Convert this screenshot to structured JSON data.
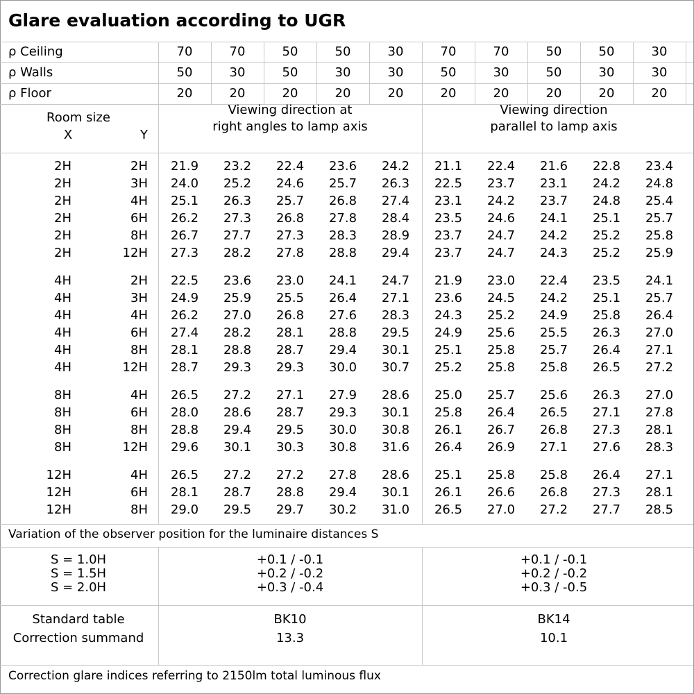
{
  "title": "Glare evaluation according to UGR",
  "reflectance": [
    {
      "label": "ρ Ceiling",
      "values": [
        "70",
        "70",
        "50",
        "50",
        "30",
        "70",
        "70",
        "50",
        "50",
        "30"
      ]
    },
    {
      "label": "ρ Walls",
      "values": [
        "50",
        "30",
        "50",
        "30",
        "30",
        "50",
        "30",
        "50",
        "30",
        "30"
      ]
    },
    {
      "label": "ρ Floor",
      "values": [
        "20",
        "20",
        "20",
        "20",
        "20",
        "20",
        "20",
        "20",
        "20",
        "20"
      ]
    }
  ],
  "room_size": {
    "label": "Room size",
    "x": "X",
    "y": "Y"
  },
  "directions": [
    [
      "Viewing direction at",
      "right angles to lamp axis"
    ],
    [
      "Viewing direction",
      "parallel to lamp axis"
    ]
  ],
  "groups": [
    [
      {
        "x": "2H",
        "y": "2H",
        "values": [
          "21.9",
          "23.2",
          "22.4",
          "23.6",
          "24.2",
          "21.1",
          "22.4",
          "21.6",
          "22.8",
          "23.4"
        ]
      },
      {
        "x": "2H",
        "y": "3H",
        "values": [
          "24.0",
          "25.2",
          "24.6",
          "25.7",
          "26.3",
          "22.5",
          "23.7",
          "23.1",
          "24.2",
          "24.8"
        ]
      },
      {
        "x": "2H",
        "y": "4H",
        "values": [
          "25.1",
          "26.3",
          "25.7",
          "26.8",
          "27.4",
          "23.1",
          "24.2",
          "23.7",
          "24.8",
          "25.4"
        ]
      },
      {
        "x": "2H",
        "y": "6H",
        "values": [
          "26.2",
          "27.3",
          "26.8",
          "27.8",
          "28.4",
          "23.5",
          "24.6",
          "24.1",
          "25.1",
          "25.7"
        ]
      },
      {
        "x": "2H",
        "y": "8H",
        "values": [
          "26.7",
          "27.7",
          "27.3",
          "28.3",
          "28.9",
          "23.7",
          "24.7",
          "24.2",
          "25.2",
          "25.8"
        ]
      },
      {
        "x": "2H",
        "y": "12H",
        "values": [
          "27.3",
          "28.2",
          "27.8",
          "28.8",
          "29.4",
          "23.7",
          "24.7",
          "24.3",
          "25.2",
          "25.9"
        ]
      }
    ],
    [
      {
        "x": "4H",
        "y": "2H",
        "values": [
          "22.5",
          "23.6",
          "23.0",
          "24.1",
          "24.7",
          "21.9",
          "23.0",
          "22.4",
          "23.5",
          "24.1"
        ]
      },
      {
        "x": "4H",
        "y": "3H",
        "values": [
          "24.9",
          "25.9",
          "25.5",
          "26.4",
          "27.1",
          "23.6",
          "24.5",
          "24.2",
          "25.1",
          "25.7"
        ]
      },
      {
        "x": "4H",
        "y": "4H",
        "values": [
          "26.2",
          "27.0",
          "26.8",
          "27.6",
          "28.3",
          "24.3",
          "25.2",
          "24.9",
          "25.8",
          "26.4"
        ]
      },
      {
        "x": "4H",
        "y": "6H",
        "values": [
          "27.4",
          "28.2",
          "28.1",
          "28.8",
          "29.5",
          "24.9",
          "25.6",
          "25.5",
          "26.3",
          "27.0"
        ]
      },
      {
        "x": "4H",
        "y": "8H",
        "values": [
          "28.1",
          "28.8",
          "28.7",
          "29.4",
          "30.1",
          "25.1",
          "25.8",
          "25.7",
          "26.4",
          "27.1"
        ]
      },
      {
        "x": "4H",
        "y": "12H",
        "values": [
          "28.7",
          "29.3",
          "29.3",
          "30.0",
          "30.7",
          "25.2",
          "25.8",
          "25.8",
          "26.5",
          "27.2"
        ]
      }
    ],
    [
      {
        "x": "8H",
        "y": "4H",
        "values": [
          "26.5",
          "27.2",
          "27.1",
          "27.9",
          "28.6",
          "25.0",
          "25.7",
          "25.6",
          "26.3",
          "27.0"
        ]
      },
      {
        "x": "8H",
        "y": "6H",
        "values": [
          "28.0",
          "28.6",
          "28.7",
          "29.3",
          "30.1",
          "25.8",
          "26.4",
          "26.5",
          "27.1",
          "27.8"
        ]
      },
      {
        "x": "8H",
        "y": "8H",
        "values": [
          "28.8",
          "29.4",
          "29.5",
          "30.0",
          "30.8",
          "26.1",
          "26.7",
          "26.8",
          "27.3",
          "28.1"
        ]
      },
      {
        "x": "8H",
        "y": "12H",
        "values": [
          "29.6",
          "30.1",
          "30.3",
          "30.8",
          "31.6",
          "26.4",
          "26.9",
          "27.1",
          "27.6",
          "28.3"
        ]
      }
    ],
    [
      {
        "x": "12H",
        "y": "4H",
        "values": [
          "26.5",
          "27.2",
          "27.2",
          "27.8",
          "28.6",
          "25.1",
          "25.8",
          "25.8",
          "26.4",
          "27.1"
        ]
      },
      {
        "x": "12H",
        "y": "6H",
        "values": [
          "28.1",
          "28.7",
          "28.8",
          "29.4",
          "30.1",
          "26.1",
          "26.6",
          "26.8",
          "27.3",
          "28.1"
        ]
      },
      {
        "x": "12H",
        "y": "8H",
        "values": [
          "29.0",
          "29.5",
          "29.7",
          "30.2",
          "31.0",
          "26.5",
          "27.0",
          "27.2",
          "27.7",
          "28.5"
        ]
      }
    ]
  ],
  "variation": {
    "caption": "Variation of the observer position for the luminaire distances S",
    "rows": [
      {
        "s": "S = 1.0H",
        "right": "+0.1 / -0.1",
        "parallel": "+0.1 / -0.1"
      },
      {
        "s": "S = 1.5H",
        "right": "+0.2 / -0.2",
        "parallel": "+0.2 / -0.2"
      },
      {
        "s": "S = 2.0H",
        "right": "+0.3 / -0.4",
        "parallel": "+0.3 / -0.5"
      }
    ]
  },
  "standard": {
    "labels": [
      "Standard table",
      "Correction summand"
    ],
    "right": [
      "BK10",
      "13.3"
    ],
    "parallel": [
      "BK14",
      "10.1"
    ]
  },
  "footer": "Correction glare indices referring to 2150lm total luminous flux"
}
